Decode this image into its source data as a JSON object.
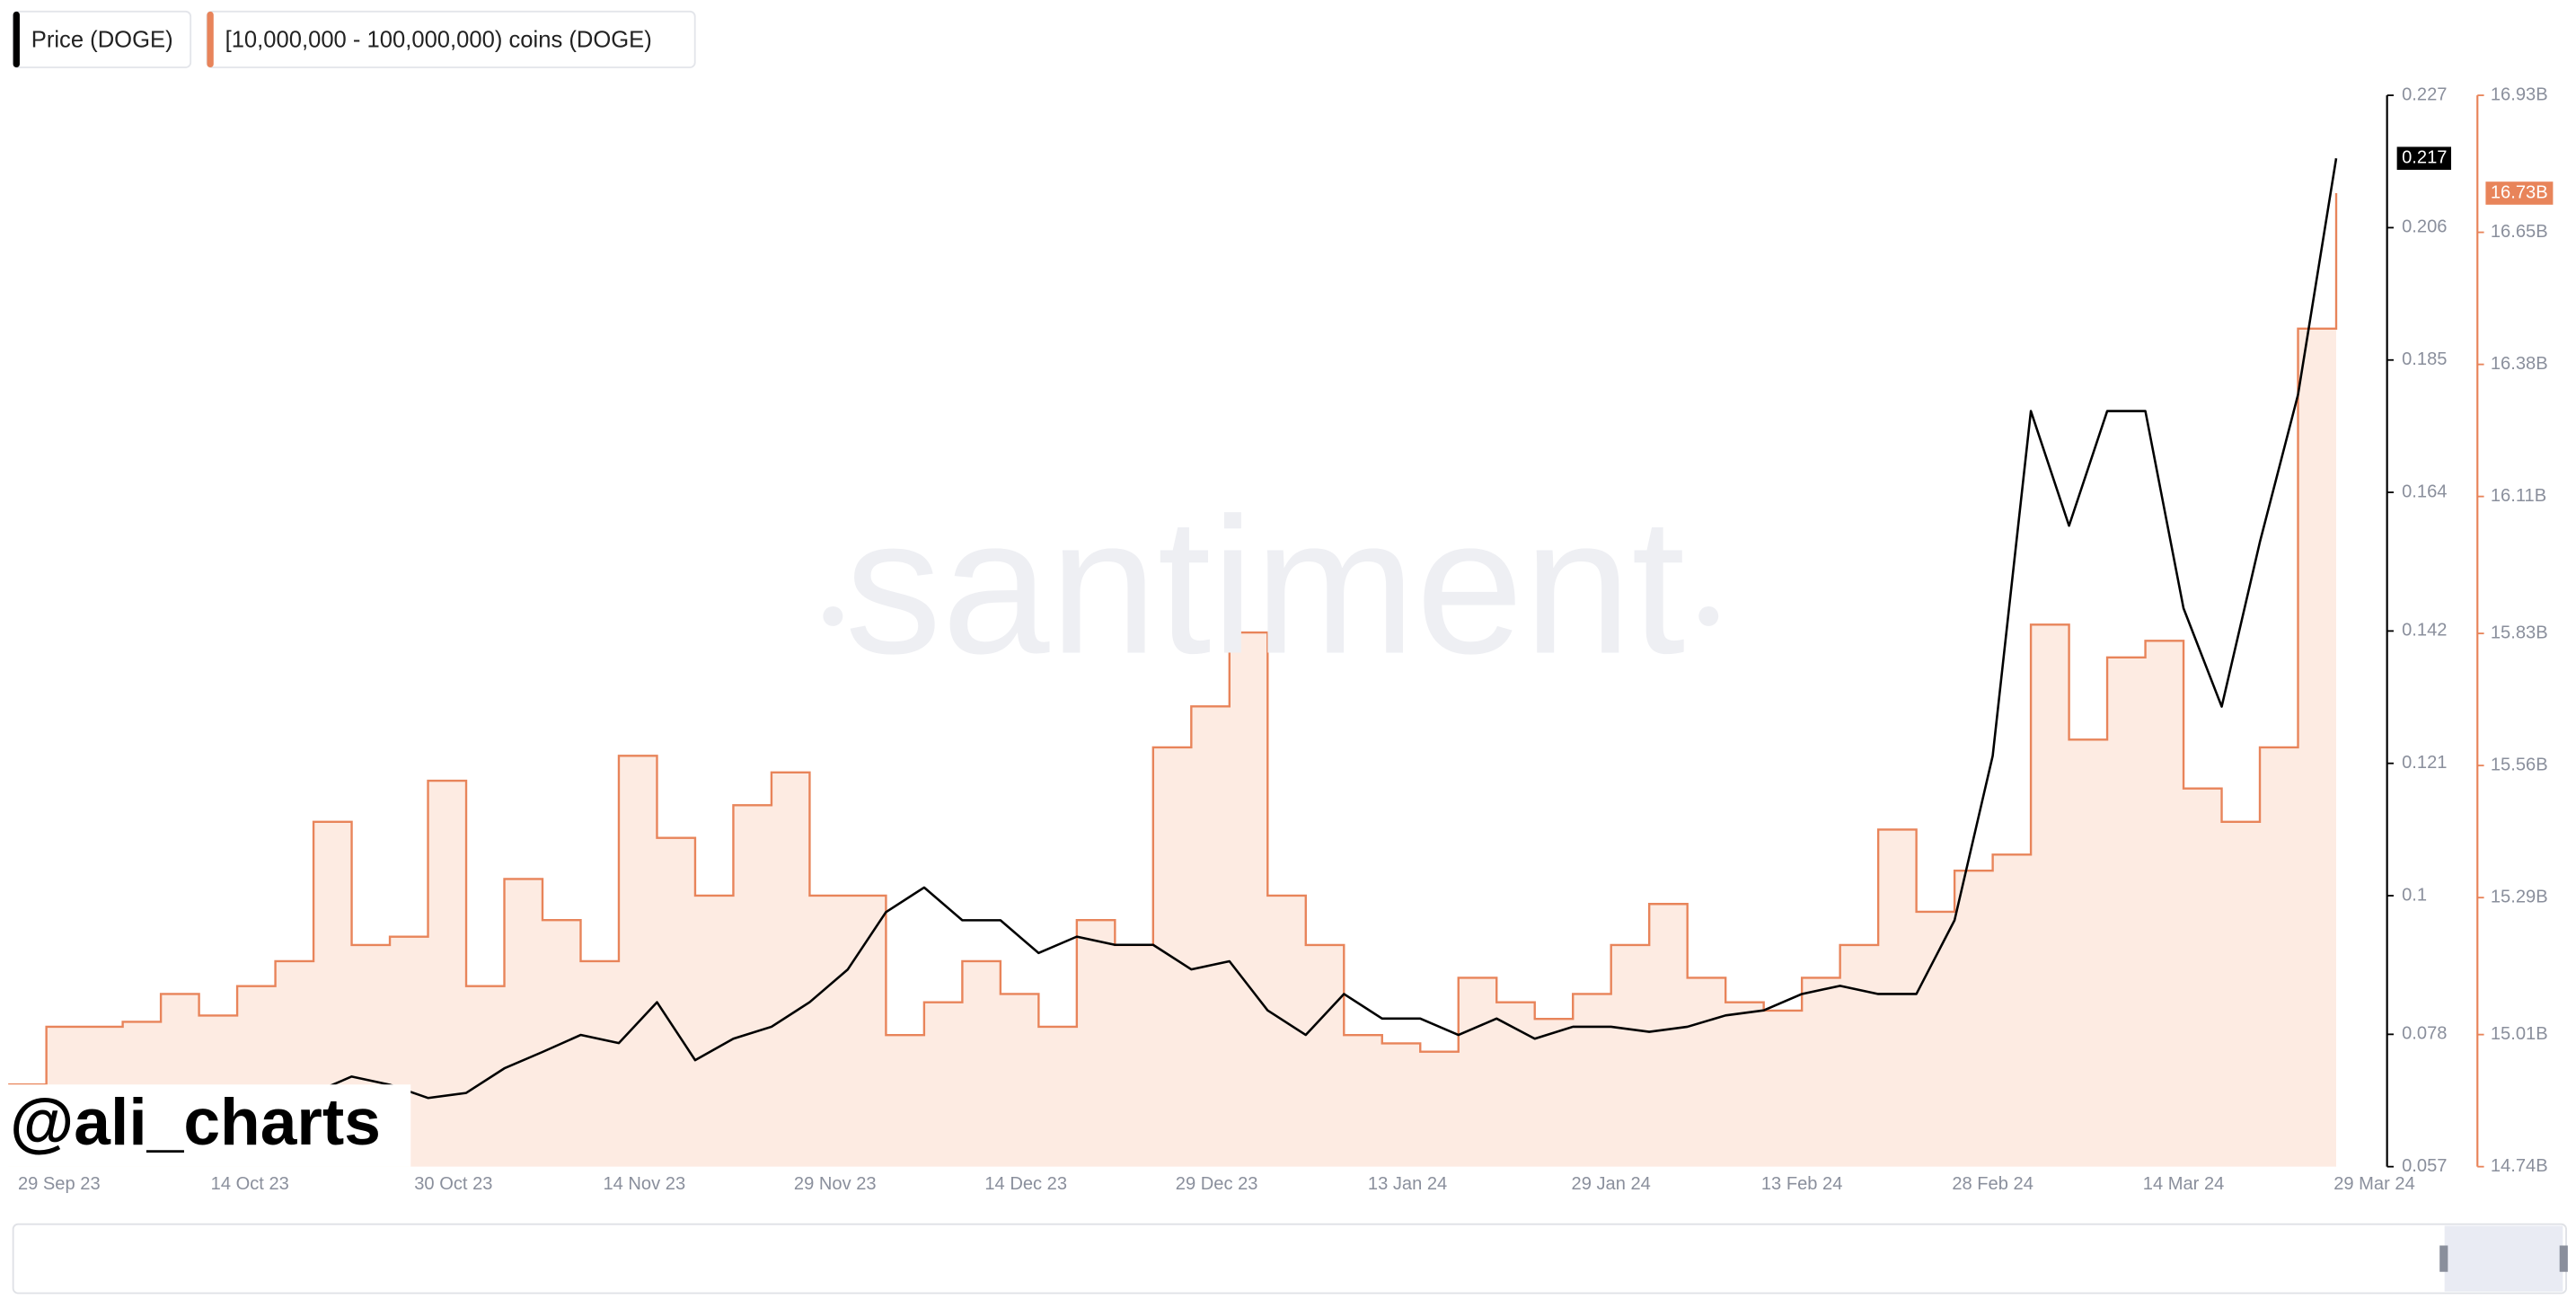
{
  "chart_data": {
    "type": "line",
    "watermark": "santiment",
    "annotation": "@ali_charts",
    "x": [
      "2023-09-25",
      "2023-09-28",
      "2023-10-01",
      "2023-10-04",
      "2023-10-07",
      "2023-10-10",
      "2023-10-13",
      "2023-10-16",
      "2023-10-19",
      "2023-10-22",
      "2023-10-25",
      "2023-10-28",
      "2023-10-31",
      "2023-11-03",
      "2023-11-06",
      "2023-11-09",
      "2023-11-12",
      "2023-11-15",
      "2023-11-18",
      "2023-11-21",
      "2023-11-24",
      "2023-11-27",
      "2023-11-30",
      "2023-12-03",
      "2023-12-06",
      "2023-12-09",
      "2023-12-12",
      "2023-12-15",
      "2023-12-18",
      "2023-12-21",
      "2023-12-24",
      "2023-12-27",
      "2023-12-30",
      "2024-01-02",
      "2024-01-05",
      "2024-01-08",
      "2024-01-11",
      "2024-01-14",
      "2024-01-17",
      "2024-01-20",
      "2024-01-23",
      "2024-01-26",
      "2024-01-29",
      "2024-02-01",
      "2024-02-04",
      "2024-02-07",
      "2024-02-10",
      "2024-02-13",
      "2024-02-16",
      "2024-02-19",
      "2024-02-22",
      "2024-02-25",
      "2024-02-28",
      "2024-03-02",
      "2024-03-05",
      "2024-03-08",
      "2024-03-11",
      "2024-03-14",
      "2024-03-17",
      "2024-03-20",
      "2024-03-23",
      "2024-03-26"
    ],
    "xlim": [
      "2023-09-25",
      "2024-03-30"
    ],
    "xticks": [
      {
        "value": "2023-09-29",
        "label": "29 Sep 23"
      },
      {
        "value": "2023-10-14",
        "label": "14 Oct 23"
      },
      {
        "value": "2023-10-30",
        "label": "30 Oct 23"
      },
      {
        "value": "2023-11-14",
        "label": "14 Nov 23"
      },
      {
        "value": "2023-11-29",
        "label": "29 Nov 23"
      },
      {
        "value": "2023-12-14",
        "label": "14 Dec 23"
      },
      {
        "value": "2023-12-29",
        "label": "29 Dec 23"
      },
      {
        "value": "2024-01-13",
        "label": "13 Jan 24"
      },
      {
        "value": "2024-01-29",
        "label": "29 Jan 24"
      },
      {
        "value": "2024-02-13",
        "label": "13 Feb 24"
      },
      {
        "value": "2024-02-28",
        "label": "28 Feb 24"
      },
      {
        "value": "2024-03-14",
        "label": "14 Mar 24"
      },
      {
        "value": "2024-03-29",
        "label": "29 Mar 24"
      }
    ],
    "ylim": [
      0.057,
      0.227
    ],
    "yticks": [
      0.057,
      0.078,
      0.1,
      0.121,
      0.142,
      0.164,
      0.185,
      0.206,
      0.227
    ],
    "y2lim": [
      14.74,
      16.93
    ],
    "y2ticks": [
      {
        "value": 14.74,
        "label": "14.74B"
      },
      {
        "value": 15.01,
        "label": "15.01B"
      },
      {
        "value": 15.29,
        "label": "15.29B"
      },
      {
        "value": 15.56,
        "label": "15.56B"
      },
      {
        "value": 15.83,
        "label": "15.83B"
      },
      {
        "value": 16.11,
        "label": "16.11B"
      },
      {
        "value": 16.38,
        "label": "16.38B"
      },
      {
        "value": 16.65,
        "label": "16.65B"
      },
      {
        "value": 16.93,
        "label": "16.93B"
      }
    ],
    "series": [
      {
        "name": "Price (DOGE)",
        "color": "#000000",
        "axis": "y",
        "values": [
          0.0687,
          0.0679,
          0.0669,
          0.0674,
          0.0679,
          0.0674,
          0.0669,
          0.0679,
          0.0687,
          0.0713,
          0.07,
          0.0679,
          0.0687,
          0.0726,
          0.0752,
          0.0779,
          0.0766,
          0.0831,
          0.0739,
          0.0773,
          0.0792,
          0.0831,
          0.0883,
          0.0974,
          0.1013,
          0.0961,
          0.0961,
          0.0909,
          0.0935,
          0.0922,
          0.0922,
          0.0883,
          0.0896,
          0.0818,
          0.0779,
          0.0844,
          0.0805,
          0.0805,
          0.0779,
          0.0805,
          0.0773,
          0.0792,
          0.0792,
          0.0784,
          0.0792,
          0.081,
          0.0818,
          0.0844,
          0.0857,
          0.0844,
          0.0844,
          0.0961,
          0.1222,
          0.1769,
          0.1587,
          0.1769,
          0.1769,
          0.1456,
          0.13,
          0.1561,
          0.1795,
          0.217
        ]
      },
      {
        "name": "[10,000,000 - 100,000,000) coins (DOGE)",
        "color": "#e8845a",
        "axis": "y2",
        "values": [
          14.908,
          15.026,
          15.026,
          15.036,
          15.093,
          15.049,
          15.109,
          15.16,
          15.445,
          15.193,
          15.21,
          15.529,
          15.109,
          15.328,
          15.244,
          15.16,
          15.58,
          15.412,
          15.294,
          15.479,
          15.546,
          15.294,
          15.294,
          15.009,
          15.076,
          15.16,
          15.093,
          15.026,
          15.244,
          15.193,
          15.597,
          15.681,
          15.832,
          15.294,
          15.193,
          15.009,
          14.992,
          14.975,
          15.126,
          15.076,
          15.042,
          15.093,
          15.193,
          15.277,
          15.126,
          15.076,
          15.059,
          15.126,
          15.193,
          15.429,
          15.261,
          15.345,
          15.378,
          15.848,
          15.613,
          15.781,
          15.815,
          15.513,
          15.445,
          15.597,
          16.453,
          16.73
        ],
        "last_value_label": "16.73B"
      }
    ]
  }
}
